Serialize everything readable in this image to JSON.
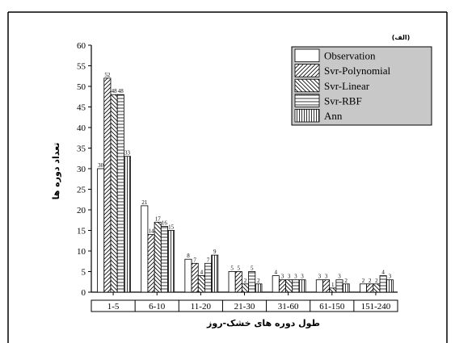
{
  "chart_data": {
    "type": "bar",
    "panel_label": "(الف)",
    "xlabel": "طول دوره های خشک-روز",
    "ylabel": "تعداد دوره ها",
    "ylim": [
      0,
      60
    ],
    "yticks": [
      0,
      5,
      10,
      15,
      20,
      25,
      30,
      35,
      40,
      45,
      50,
      55,
      60
    ],
    "categories": [
      "1-5",
      "6-10",
      "11-20",
      "21-30",
      "31-60",
      "61-150",
      "151-240"
    ],
    "legend_position": "top-right",
    "series": [
      {
        "name": "Observation",
        "pattern": "none",
        "values": [
          30,
          21,
          8,
          5,
          4,
          3,
          2
        ]
      },
      {
        "name": "Svr-Polynomial",
        "pattern": "forward-diagonal",
        "values": [
          52,
          14,
          7,
          5,
          3,
          3,
          2
        ]
      },
      {
        "name": "Svr-Linear",
        "pattern": "back-diagonal",
        "values": [
          48,
          17,
          4,
          2,
          3,
          1,
          2
        ]
      },
      {
        "name": "Svr-RBF",
        "pattern": "horizontal",
        "values": [
          48,
          16,
          7,
          5,
          3,
          3,
          4
        ]
      },
      {
        "name": "Ann",
        "pattern": "vertical",
        "values": [
          33,
          15,
          9,
          2,
          3,
          2,
          3
        ]
      }
    ],
    "legend_background": "#c8c8c8"
  }
}
